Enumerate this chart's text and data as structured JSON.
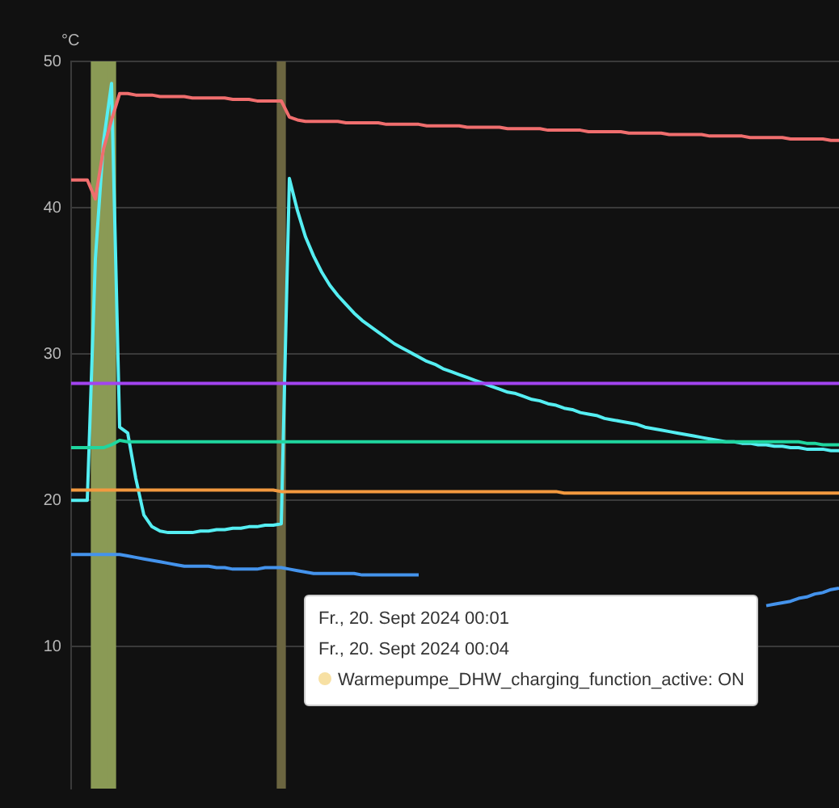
{
  "chart_data": {
    "type": "line",
    "ylabel": "°C",
    "ylim": [
      0.3,
      50
    ],
    "yticks": [
      10,
      20,
      30,
      40,
      50
    ],
    "grid": "y",
    "legend": false,
    "tick_labels": "y",
    "marker": "none",
    "line_style": "solid",
    "categories": [
      null,
      null,
      null,
      null,
      null,
      null,
      null,
      null,
      null,
      null,
      null,
      null,
      null,
      null,
      null,
      null,
      null,
      null,
      null,
      null,
      null,
      null,
      null,
      null,
      null,
      null,
      null,
      null,
      null,
      null,
      null,
      null,
      null,
      null,
      null,
      null,
      null,
      null,
      null,
      null,
      null,
      null,
      null,
      null,
      null,
      null,
      null,
      null,
      null,
      null,
      null,
      null,
      null,
      null,
      null,
      null,
      null,
      null,
      null,
      null,
      null,
      null,
      null,
      null,
      null,
      null,
      null,
      null,
      null,
      null,
      null,
      null,
      null,
      null,
      null,
      null,
      null,
      null,
      null,
      null,
      null,
      null,
      null,
      null,
      null,
      null,
      null,
      null,
      null,
      null,
      null,
      null,
      null,
      null,
      null,
      null
    ],
    "series": [
      {
        "type": "bar",
        "colors": [
          null,
          null,
          null,
          "#8a9a55",
          "#8a9a55",
          "#8a9a55",
          null,
          null,
          null,
          null,
          null,
          null,
          null,
          null,
          null,
          null,
          null,
          null,
          null,
          null,
          null,
          null,
          null,
          null,
          null,
          null,
          "#6b6540",
          null,
          null,
          null,
          null,
          null,
          null,
          null,
          null,
          null,
          null,
          null,
          null,
          null,
          null,
          null,
          null,
          null,
          null,
          null,
          null,
          null,
          null,
          null,
          null,
          null,
          null,
          null,
          null,
          null,
          null,
          null,
          null,
          null,
          null,
          null,
          null,
          null,
          null,
          null,
          null,
          null,
          null,
          null,
          null,
          null,
          null,
          null,
          null,
          null,
          null,
          null,
          null,
          null,
          null,
          null,
          null,
          null,
          null,
          null,
          null,
          null,
          null,
          null,
          null,
          null,
          null,
          null,
          null,
          null
        ],
        "values": [
          null,
          null,
          null,
          50,
          50,
          50,
          null,
          null,
          null,
          null,
          null,
          null,
          null,
          null,
          null,
          null,
          null,
          null,
          null,
          null,
          null,
          null,
          null,
          null,
          null,
          null,
          50,
          null,
          null,
          null,
          null,
          null,
          null,
          null,
          null,
          null,
          null,
          null,
          null,
          null,
          null,
          null,
          null,
          null,
          null,
          null,
          null,
          null,
          null,
          null,
          null,
          null,
          null,
          null,
          null,
          null,
          null,
          null,
          null,
          null,
          null,
          null,
          null,
          null,
          null,
          null,
          null,
          null,
          null,
          null,
          null,
          null,
          null,
          null,
          null,
          null,
          null,
          null,
          null,
          null,
          null,
          null,
          null,
          null,
          null,
          null,
          null,
          null,
          null,
          null,
          null,
          null,
          null,
          null,
          null,
          null
        ]
      },
      {
        "color": "#a244f0",
        "values": [
          28,
          28,
          28,
          28,
          28,
          28,
          28,
          28,
          28,
          28,
          28,
          28,
          28,
          28,
          28,
          28,
          28,
          28,
          28,
          28,
          28,
          28,
          28,
          28,
          28,
          28,
          28,
          28,
          28,
          28,
          28,
          28,
          28,
          28,
          28,
          28,
          28,
          28,
          28,
          28,
          28,
          28,
          28,
          28,
          28,
          28,
          28,
          28,
          28,
          28,
          28,
          28,
          28,
          28,
          28,
          28,
          28,
          28,
          28,
          28,
          28,
          28,
          28,
          28,
          28,
          28,
          28,
          28,
          28,
          28,
          28,
          28,
          28,
          28,
          28,
          28,
          28,
          28,
          28,
          28,
          28,
          28,
          28,
          28,
          28,
          28,
          28,
          28,
          28,
          28,
          28,
          28,
          28,
          28,
          28,
          28
        ]
      },
      {
        "color": "#f06e6e",
        "values": [
          41.9,
          41.9,
          41.9,
          40.6,
          44,
          46,
          47.8,
          47.8,
          47.7,
          47.7,
          47.7,
          47.6,
          47.6,
          47.6,
          47.6,
          47.5,
          47.5,
          47.5,
          47.5,
          47.5,
          47.4,
          47.4,
          47.4,
          47.3,
          47.3,
          47.3,
          47.3,
          46.2,
          46.0,
          45.9,
          45.9,
          45.9,
          45.9,
          45.9,
          45.8,
          45.8,
          45.8,
          45.8,
          45.8,
          45.7,
          45.7,
          45.7,
          45.7,
          45.7,
          45.6,
          45.6,
          45.6,
          45.6,
          45.6,
          45.5,
          45.5,
          45.5,
          45.5,
          45.5,
          45.4,
          45.4,
          45.4,
          45.4,
          45.4,
          45.3,
          45.3,
          45.3,
          45.3,
          45.3,
          45.2,
          45.2,
          45.2,
          45.2,
          45.2,
          45.1,
          45.1,
          45.1,
          45.1,
          45.1,
          45.0,
          45.0,
          45.0,
          45.0,
          45.0,
          44.9,
          44.9,
          44.9,
          44.9,
          44.9,
          44.8,
          44.8,
          44.8,
          44.8,
          44.8,
          44.7,
          44.7,
          44.7,
          44.7,
          44.7,
          44.6,
          44.6
        ]
      },
      {
        "color": "#1fd69f",
        "values": [
          23.6,
          23.6,
          23.6,
          23.6,
          23.6,
          23.8,
          24.1,
          24,
          24,
          24,
          24,
          24,
          24,
          24,
          24,
          24,
          24,
          24,
          24,
          24,
          24,
          24,
          24,
          24,
          24,
          24,
          24,
          24,
          24,
          24,
          24,
          24,
          24,
          24,
          24,
          24,
          24,
          24,
          24,
          24,
          24,
          24,
          24,
          24,
          24,
          24,
          24,
          24,
          24,
          24,
          24,
          24,
          24,
          24,
          24,
          24,
          24,
          24,
          24,
          24,
          24,
          24,
          24,
          24,
          24,
          24,
          24,
          24,
          24,
          24,
          24,
          24,
          24,
          24,
          24,
          24,
          24,
          24,
          24,
          24,
          24,
          24,
          24,
          24,
          24,
          24,
          24,
          24,
          24,
          24,
          24,
          23.9,
          23.9,
          23.8,
          23.8,
          23.8
        ]
      },
      {
        "color": "#f3993f",
        "values": [
          20.7,
          20.7,
          20.7,
          20.7,
          20.7,
          20.7,
          20.7,
          20.7,
          20.7,
          20.7,
          20.7,
          20.7,
          20.7,
          20.7,
          20.7,
          20.7,
          20.7,
          20.7,
          20.7,
          20.7,
          20.7,
          20.7,
          20.7,
          20.7,
          20.7,
          20.7,
          20.6,
          20.6,
          20.6,
          20.6,
          20.6,
          20.6,
          20.6,
          20.6,
          20.6,
          20.6,
          20.6,
          20.6,
          20.6,
          20.6,
          20.6,
          20.6,
          20.6,
          20.6,
          20.6,
          20.6,
          20.6,
          20.6,
          20.6,
          20.6,
          20.6,
          20.6,
          20.6,
          20.6,
          20.6,
          20.6,
          20.6,
          20.6,
          20.6,
          20.6,
          20.6,
          20.5,
          20.5,
          20.5,
          20.5,
          20.5,
          20.5,
          20.5,
          20.5,
          20.5,
          20.5,
          20.5,
          20.5,
          20.5,
          20.5,
          20.5,
          20.5,
          20.5,
          20.5,
          20.5,
          20.5,
          20.5,
          20.5,
          20.5,
          20.5,
          20.5,
          20.5,
          20.5,
          20.5,
          20.5,
          20.5,
          20.5,
          20.5,
          20.5,
          20.5,
          20.5
        ]
      },
      {
        "color": "#4493ec",
        "values": [
          16.3,
          16.3,
          16.3,
          16.3,
          16.3,
          16.3,
          16.3,
          16.2,
          16.1,
          16.0,
          15.9,
          15.8,
          15.7,
          15.6,
          15.5,
          15.5,
          15.5,
          15.5,
          15.4,
          15.4,
          15.3,
          15.3,
          15.3,
          15.3,
          15.4,
          15.4,
          15.4,
          15.3,
          15.2,
          15.1,
          15.0,
          15.0,
          15.0,
          15.0,
          15.0,
          15.0,
          14.9,
          14.9,
          14.9,
          14.9,
          14.9,
          14.9,
          14.9,
          14.9,
          null,
          null,
          null,
          null,
          null,
          null,
          null,
          null,
          null,
          null,
          null,
          null,
          null,
          null,
          null,
          null,
          null,
          null,
          null,
          null,
          null,
          null,
          null,
          null,
          null,
          null,
          null,
          null,
          null,
          null,
          null,
          null,
          null,
          null,
          null,
          null,
          null,
          null,
          null,
          null,
          null,
          null,
          12.8,
          12.9,
          13.0,
          13.1,
          13.3,
          13.4,
          13.6,
          13.7,
          13.9,
          14.0
        ]
      },
      {
        "color": "#55eef2",
        "values": [
          20,
          20,
          20,
          36.5,
          44.5,
          48.5,
          25,
          24.6,
          21.5,
          19,
          18.2,
          17.9,
          17.8,
          17.8,
          17.8,
          17.8,
          17.9,
          17.9,
          18.0,
          18.0,
          18.1,
          18.1,
          18.2,
          18.2,
          18.3,
          18.3,
          18.4,
          42.0,
          39.8,
          38.0,
          36.7,
          35.6,
          34.7,
          34.0,
          33.4,
          32.8,
          32.3,
          31.9,
          31.5,
          31.1,
          30.7,
          30.4,
          30.1,
          29.8,
          29.5,
          29.3,
          29.0,
          28.8,
          28.6,
          28.4,
          28.2,
          28.0,
          27.8,
          27.6,
          27.4,
          27.3,
          27.1,
          26.9,
          26.8,
          26.6,
          26.5,
          26.3,
          26.2,
          26.0,
          25.9,
          25.8,
          25.6,
          25.5,
          25.4,
          25.3,
          25.2,
          25.0,
          24.9,
          24.8,
          24.7,
          24.6,
          24.5,
          24.4,
          24.3,
          24.2,
          24.1,
          24.0,
          24.0,
          23.9,
          23.9,
          23.8,
          23.8,
          23.7,
          23.7,
          23.6,
          23.6,
          23.5,
          23.5,
          23.5,
          23.4,
          23.4
        ]
      }
    ],
    "annotations": [
      "Fr., 20. Sept 2024 00:01",
      "Fr., 20. Sept 2024 00:04",
      "Warmepumpe_DHW_charging_function_active: ON"
    ]
  }
}
